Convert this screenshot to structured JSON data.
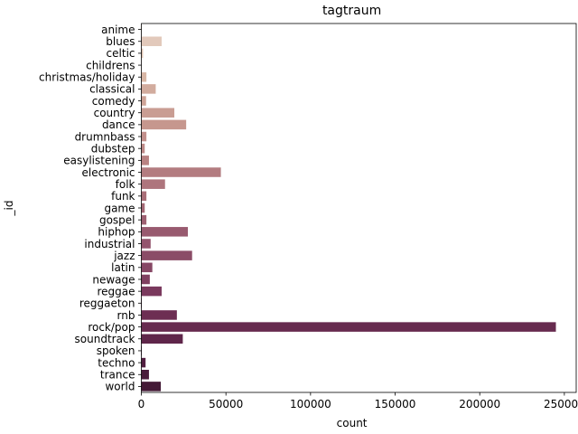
{
  "chart_data": {
    "type": "bar",
    "orientation": "horizontal",
    "title": "tagtraum",
    "xlabel": "count",
    "ylabel": "_id",
    "xlim": [
      0,
      257000
    ],
    "xticks": [
      0,
      50000,
      100000,
      150000,
      200000,
      250000
    ],
    "grid": false,
    "categories": [
      "anime",
      "blues",
      "celtic",
      "childrens",
      "christmas/holiday",
      "classical",
      "comedy",
      "country",
      "dance",
      "drumnbass",
      "dubstep",
      "easylistening",
      "electronic",
      "folk",
      "funk",
      "game",
      "gospel",
      "hiphop",
      "industrial",
      "jazz",
      "latin",
      "newage",
      "reggae",
      "reggaeton",
      "rnb",
      "rock/pop",
      "soundtrack",
      "spoken",
      "techno",
      "trance",
      "world"
    ],
    "values": [
      200,
      12000,
      1000,
      100,
      3000,
      8500,
      2800,
      19500,
      26500,
      3000,
      2000,
      4500,
      47000,
      14000,
      3000,
      2000,
      3000,
      27500,
      5500,
      30000,
      6500,
      5000,
      12000,
      300,
      21000,
      245000,
      24500,
      300,
      2500,
      4500,
      11500
    ],
    "colors": [
      "#e8d4c6",
      "#e2c9bb",
      "#dfc4b3",
      "#dcbfad",
      "#d8b7a6",
      "#d2ac9e",
      "#cea497",
      "#c99d93",
      "#c6978e",
      "#c2908c",
      "#bd8987",
      "#b98383",
      "#b37c80",
      "#ae757d",
      "#a96e78",
      "#a36875",
      "#9e6172",
      "#985a6f",
      "#93546d",
      "#8b4c67",
      "#864765",
      "#804061",
      "#7a395d",
      "#733457",
      "#6d2e53",
      "#672b4f",
      "#5f264a",
      "#582244",
      "#521f41",
      "#4a1c3b",
      "#441a36"
    ]
  }
}
